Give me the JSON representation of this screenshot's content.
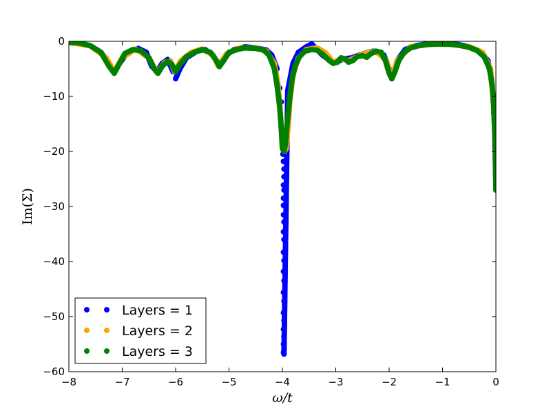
{
  "chart_data": {
    "type": "scatter",
    "xlabel": "ω/t",
    "ylabel": "Im(Σ)",
    "xlim": [
      -8,
      0
    ],
    "ylim": [
      -60,
      0
    ],
    "x_ticks": [
      -8,
      -7,
      -6,
      -5,
      -4,
      -3,
      -2,
      -1,
      0
    ],
    "y_ticks": [
      -60,
      -50,
      -40,
      -30,
      -20,
      -10,
      0
    ],
    "x_tick_labels": [
      "−8",
      "−7",
      "−6",
      "−5",
      "−4",
      "−3",
      "−2",
      "−1",
      "0"
    ],
    "y_tick_labels": [
      "−60",
      "−50",
      "−40",
      "−30",
      "−20",
      "−10",
      "0"
    ],
    "grid": false,
    "legend_position": "bottom-left",
    "series": [
      {
        "name": "Layers = 1",
        "color": "#0000ff",
        "points": [
          [
            -8.0,
            -0.2
          ],
          [
            -7.8,
            -0.4
          ],
          [
            -7.6,
            -0.8
          ],
          [
            -7.4,
            -2.0
          ],
          [
            -7.25,
            -4.0
          ],
          [
            -7.15,
            -5.5
          ],
          [
            -7.05,
            -4.0
          ],
          [
            -6.9,
            -2.0
          ],
          [
            -6.7,
            -1.3
          ],
          [
            -6.55,
            -2.0
          ],
          [
            -6.45,
            -4.5
          ],
          [
            -6.35,
            -5.5
          ],
          [
            -6.25,
            -4.0
          ],
          [
            -6.15,
            -3.3
          ],
          [
            -6.05,
            -5.5
          ],
          [
            -6.0,
            -6.8
          ],
          [
            -5.92,
            -5.0
          ],
          [
            -5.8,
            -3.0
          ],
          [
            -5.6,
            -1.8
          ],
          [
            -5.45,
            -1.5
          ],
          [
            -5.3,
            -2.5
          ],
          [
            -5.2,
            -4.3
          ],
          [
            -5.05,
            -2.5
          ],
          [
            -4.9,
            -1.5
          ],
          [
            -4.7,
            -1.0
          ],
          [
            -4.5,
            -1.2
          ],
          [
            -4.3,
            -1.6
          ],
          [
            -4.2,
            -2.5
          ],
          [
            -4.1,
            -5.0
          ],
          [
            -4.05,
            -8.5
          ],
          [
            -4.02,
            -11.0
          ],
          [
            -3.99,
            -20.5
          ],
          [
            -3.98,
            -21.8
          ],
          [
            -3.97,
            -23.2
          ],
          [
            -3.97,
            -24.6
          ],
          [
            -3.98,
            -26.1
          ],
          [
            -3.97,
            -27.0
          ],
          [
            -3.98,
            -28.5
          ],
          [
            -3.98,
            -29.8
          ],
          [
            -3.98,
            -31.5
          ],
          [
            -3.97,
            -32.8
          ],
          [
            -3.98,
            -34.6
          ],
          [
            -3.97,
            -36.0
          ],
          [
            -3.98,
            -38.3
          ],
          [
            -3.97,
            -39.8
          ],
          [
            -3.98,
            -41.8
          ],
          [
            -3.97,
            -43.5
          ],
          [
            -3.98,
            -45.6
          ],
          [
            -3.97,
            -47.2
          ],
          [
            -3.98,
            -49.3
          ],
          [
            -3.97,
            -50.7
          ],
          [
            -3.98,
            -52.3
          ],
          [
            -3.97,
            -53.6
          ],
          [
            -3.98,
            -55.0
          ],
          [
            -3.97,
            -55.9
          ],
          [
            -3.98,
            -56.5
          ],
          [
            -3.97,
            -56.8
          ],
          [
            -3.9,
            -9.0
          ],
          [
            -3.8,
            -4.0
          ],
          [
            -3.7,
            -2.0
          ],
          [
            -3.55,
            -1.0
          ],
          [
            -3.45,
            -0.5
          ],
          [
            -3.35,
            -1.5
          ],
          [
            -3.25,
            -2.5
          ],
          [
            -3.1,
            -3.5
          ],
          [
            -3.0,
            -3.8
          ],
          [
            -2.85,
            -3.2
          ],
          [
            -2.7,
            -3.0
          ],
          [
            -2.5,
            -2.3
          ],
          [
            -2.3,
            -1.8
          ],
          [
            -2.1,
            -2.5
          ],
          [
            -2.0,
            -5.0
          ],
          [
            -1.95,
            -6.8
          ],
          [
            -1.85,
            -3.5
          ],
          [
            -1.7,
            -1.5
          ],
          [
            -1.5,
            -0.8
          ],
          [
            -1.3,
            -0.5
          ],
          [
            -1.0,
            -0.4
          ],
          [
            -0.7,
            -0.6
          ],
          [
            -0.5,
            -1.0
          ],
          [
            -0.3,
            -1.8
          ],
          [
            -0.15,
            -3.5
          ],
          [
            -0.08,
            -7.0
          ],
          [
            -0.04,
            -13.0
          ],
          [
            -0.02,
            -19.0
          ],
          [
            0.0,
            -27.0
          ]
        ]
      },
      {
        "name": "Layers = 2",
        "color": "#ffa500",
        "points": [
          [
            -8.0,
            -0.2
          ],
          [
            -7.6,
            -0.8
          ],
          [
            -7.3,
            -3.0
          ],
          [
            -7.15,
            -5.5
          ],
          [
            -7.0,
            -3.0
          ],
          [
            -6.75,
            -1.4
          ],
          [
            -6.5,
            -3.0
          ],
          [
            -6.35,
            -5.7
          ],
          [
            -6.2,
            -3.8
          ],
          [
            -6.1,
            -3.5
          ],
          [
            -6.02,
            -5.5
          ],
          [
            -5.9,
            -3.5
          ],
          [
            -5.7,
            -2.0
          ],
          [
            -5.5,
            -1.4
          ],
          [
            -5.3,
            -2.5
          ],
          [
            -5.2,
            -4.5
          ],
          [
            -5.05,
            -2.3
          ],
          [
            -4.8,
            -1.2
          ],
          [
            -4.5,
            -1.2
          ],
          [
            -4.3,
            -1.8
          ],
          [
            -4.15,
            -4.0
          ],
          [
            -4.08,
            -8.0
          ],
          [
            -4.03,
            -14.0
          ],
          [
            -4.0,
            -19.0
          ],
          [
            -3.96,
            -20.0
          ],
          [
            -3.93,
            -19.5
          ],
          [
            -3.91,
            -17.5
          ],
          [
            -3.89,
            -15.0
          ],
          [
            -3.86,
            -11.0
          ],
          [
            -3.8,
            -6.0
          ],
          [
            -3.7,
            -3.0
          ],
          [
            -3.55,
            -1.5
          ],
          [
            -3.35,
            -1.2
          ],
          [
            -3.2,
            -2.0
          ],
          [
            -3.05,
            -3.8
          ],
          [
            -2.9,
            -3.2
          ],
          [
            -2.75,
            -3.5
          ],
          [
            -2.5,
            -2.3
          ],
          [
            -2.25,
            -1.8
          ],
          [
            -2.05,
            -3.5
          ],
          [
            -1.95,
            -6.8
          ],
          [
            -1.85,
            -3.5
          ],
          [
            -1.6,
            -1.0
          ],
          [
            -1.2,
            -0.5
          ],
          [
            -0.8,
            -0.6
          ],
          [
            -0.5,
            -1.0
          ],
          [
            -0.25,
            -2.0
          ],
          [
            -0.1,
            -5.0
          ],
          [
            -0.04,
            -12.0
          ],
          [
            -0.01,
            -20.0
          ],
          [
            0.0,
            -27.0
          ]
        ]
      },
      {
        "name": "Layers = 3",
        "color": "#008000",
        "points": [
          [
            -8.0,
            -0.2
          ],
          [
            -7.8,
            -0.3
          ],
          [
            -7.6,
            -0.8
          ],
          [
            -7.4,
            -2.0
          ],
          [
            -7.25,
            -4.5
          ],
          [
            -7.15,
            -5.8
          ],
          [
            -7.05,
            -4.0
          ],
          [
            -6.95,
            -2.2
          ],
          [
            -6.8,
            -1.5
          ],
          [
            -6.65,
            -1.7
          ],
          [
            -6.5,
            -3.0
          ],
          [
            -6.4,
            -5.0
          ],
          [
            -6.33,
            -5.8
          ],
          [
            -6.25,
            -4.5
          ],
          [
            -6.15,
            -3.6
          ],
          [
            -6.07,
            -4.2
          ],
          [
            -6.0,
            -5.5
          ],
          [
            -5.92,
            -4.2
          ],
          [
            -5.8,
            -2.8
          ],
          [
            -5.65,
            -2.0
          ],
          [
            -5.5,
            -1.5
          ],
          [
            -5.35,
            -2.0
          ],
          [
            -5.25,
            -3.3
          ],
          [
            -5.18,
            -4.6
          ],
          [
            -5.1,
            -3.5
          ],
          [
            -5.0,
            -2.0
          ],
          [
            -4.85,
            -1.5
          ],
          [
            -4.7,
            -1.2
          ],
          [
            -4.5,
            -1.3
          ],
          [
            -4.35,
            -1.6
          ],
          [
            -4.25,
            -2.5
          ],
          [
            -4.15,
            -5.0
          ],
          [
            -4.1,
            -8.0
          ],
          [
            -4.05,
            -12.0
          ],
          [
            -4.02,
            -16.0
          ],
          [
            -4.0,
            -19.5
          ],
          [
            -3.97,
            -20.0
          ],
          [
            -3.94,
            -18.5
          ],
          [
            -3.92,
            -16.0
          ],
          [
            -3.89,
            -13.0
          ],
          [
            -3.86,
            -10.0
          ],
          [
            -3.82,
            -7.0
          ],
          [
            -3.76,
            -4.5
          ],
          [
            -3.68,
            -2.8
          ],
          [
            -3.58,
            -1.8
          ],
          [
            -3.45,
            -1.5
          ],
          [
            -3.35,
            -1.6
          ],
          [
            -3.25,
            -2.3
          ],
          [
            -3.12,
            -3.5
          ],
          [
            -3.05,
            -4.0
          ],
          [
            -2.97,
            -3.8
          ],
          [
            -2.9,
            -3.0
          ],
          [
            -2.83,
            -3.2
          ],
          [
            -2.76,
            -3.8
          ],
          [
            -2.68,
            -3.5
          ],
          [
            -2.6,
            -2.8
          ],
          [
            -2.5,
            -2.6
          ],
          [
            -2.42,
            -2.9
          ],
          [
            -2.35,
            -2.3
          ],
          [
            -2.25,
            -1.8
          ],
          [
            -2.15,
            -2.0
          ],
          [
            -2.07,
            -3.5
          ],
          [
            -2.0,
            -5.8
          ],
          [
            -1.95,
            -6.8
          ],
          [
            -1.89,
            -5.5
          ],
          [
            -1.82,
            -3.5
          ],
          [
            -1.72,
            -2.0
          ],
          [
            -1.6,
            -1.2
          ],
          [
            -1.45,
            -0.8
          ],
          [
            -1.3,
            -0.6
          ],
          [
            -1.1,
            -0.5
          ],
          [
            -0.9,
            -0.5
          ],
          [
            -0.7,
            -0.7
          ],
          [
            -0.5,
            -1.1
          ],
          [
            -0.35,
            -1.7
          ],
          [
            -0.22,
            -2.8
          ],
          [
            -0.12,
            -5.0
          ],
          [
            -0.07,
            -8.0
          ],
          [
            -0.04,
            -12.0
          ],
          [
            -0.02,
            -17.0
          ],
          [
            -0.01,
            -22.0
          ],
          [
            0.0,
            -27.0
          ]
        ]
      }
    ]
  }
}
